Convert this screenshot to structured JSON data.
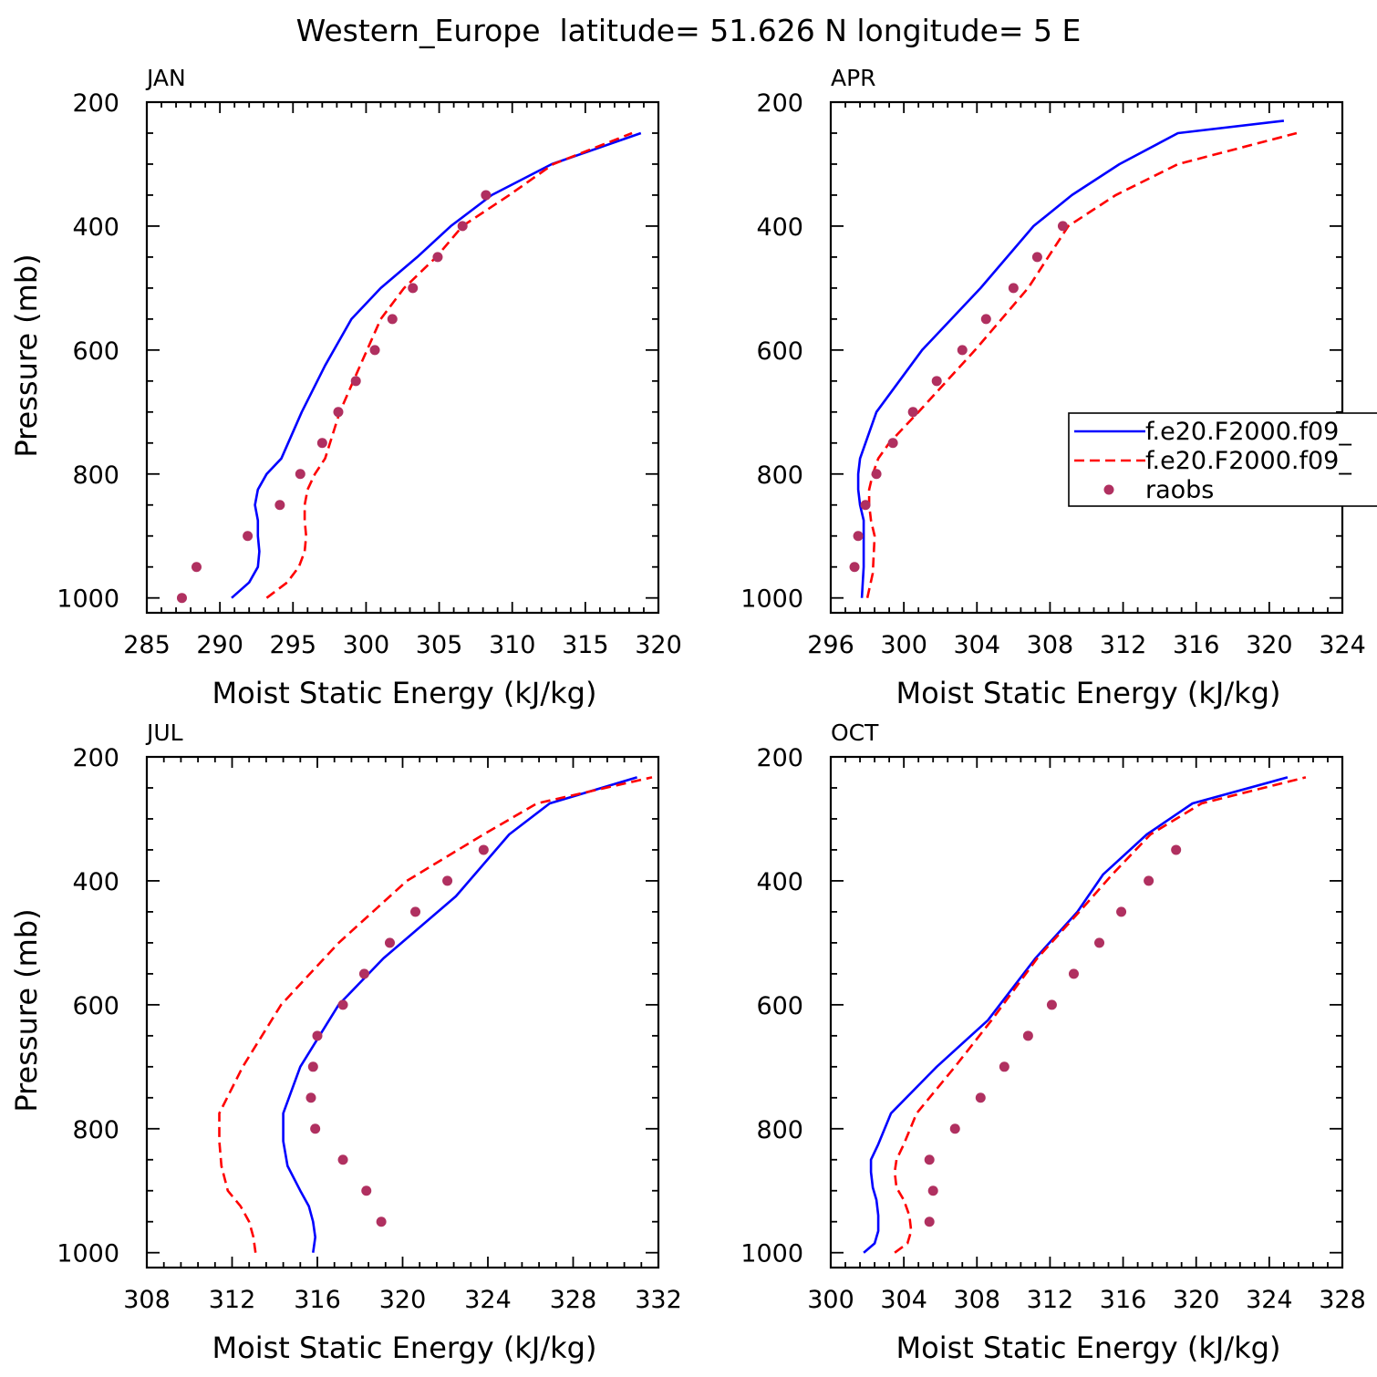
{
  "figure": {
    "title": "Western_Europe  latitude= 51.626 N longitude= 5 E"
  },
  "legend": {
    "placement": "right-middle of APR panel",
    "entries": [
      {
        "label": "f.e20.F2000.f09_",
        "color": "#0000ff",
        "style": "solid"
      },
      {
        "label": "f.e20.F2000.f09_",
        "color": "#ff0000",
        "style": "dashed"
      },
      {
        "label": "raobs",
        "color": "#b03060",
        "style": "dot"
      }
    ]
  },
  "chart_data": [
    {
      "type": "line",
      "panel_label": "JAN",
      "xlabel": "Moist Static Energy (kJ/kg)",
      "ylabel": "Pressure (mb)",
      "xlim": [
        285,
        320
      ],
      "ylim": [
        1000,
        200
      ],
      "xticks": [
        285,
        290,
        295,
        300,
        305,
        310,
        315,
        320
      ],
      "yticks": [
        200,
        400,
        600,
        800,
        1000
      ],
      "series": [
        {
          "name": "f.e20.F2000.f09_",
          "color": "#0000ff",
          "dash": false,
          "x": [
            290.8,
            292.0,
            292.6,
            292.7,
            292.6,
            292.6,
            292.4,
            292.6,
            293.2,
            294.2,
            295.6,
            297.2,
            299.0,
            301.0,
            303.5,
            305.8,
            308.6,
            312.7,
            318.8
          ],
          "y": [
            1000,
            975,
            950,
            925,
            900,
            875,
            850,
            825,
            800,
            775,
            700,
            625,
            550,
            500,
            450,
            400,
            350,
            300,
            250
          ]
        },
        {
          "name": "f.e20.F2000.f09_",
          "color": "#ff0000",
          "dash": true,
          "x": [
            293.2,
            294.6,
            295.4,
            295.8,
            295.9,
            295.8,
            295.8,
            296.0,
            296.5,
            297.2,
            298.2,
            299.6,
            301.0,
            302.6,
            304.8,
            306.6,
            309.8,
            312.8,
            318.2
          ],
          "y": [
            1000,
            975,
            950,
            925,
            900,
            875,
            850,
            825,
            800,
            775,
            700,
            625,
            550,
            500,
            450,
            400,
            350,
            300,
            250
          ]
        },
        {
          "name": "raobs",
          "color": "#b03060",
          "dots": true,
          "x": [
            287.4,
            288.4,
            291.9,
            294.1,
            295.5,
            297.0,
            298.1,
            299.3,
            300.6,
            301.8,
            303.2,
            304.9,
            306.6,
            308.2
          ],
          "y": [
            1000,
            950,
            900,
            850,
            800,
            750,
            700,
            650,
            600,
            550,
            500,
            450,
            400,
            350
          ]
        }
      ]
    },
    {
      "type": "line",
      "panel_label": "APR",
      "xlabel": "Moist Static Energy (kJ/kg)",
      "ylabel": "",
      "xlim": [
        296,
        324
      ],
      "ylim": [
        1000,
        200
      ],
      "xticks": [
        296,
        300,
        304,
        308,
        312,
        316,
        320,
        324
      ],
      "yticks": [
        200,
        400,
        600,
        800,
        1000
      ],
      "series": [
        {
          "name": "f.e20.F2000.f09_",
          "color": "#0000ff",
          "dash": false,
          "x": [
            297.7,
            297.8,
            297.8,
            297.8,
            297.6,
            297.5,
            297.5,
            297.6,
            297.9,
            298.5,
            301.0,
            304.2,
            307.1,
            309.2,
            311.8,
            315.0,
            320.8
          ],
          "y": [
            1000,
            950,
            900,
            875,
            850,
            825,
            800,
            775,
            750,
            700,
            600,
            500,
            400,
            350,
            300,
            250,
            230
          ]
        },
        {
          "name": "f.e20.F2000.f09_",
          "color": "#ff0000",
          "dash": true,
          "x": [
            298.0,
            298.3,
            298.4,
            298.2,
            298.1,
            298.1,
            298.3,
            298.6,
            299.2,
            300.8,
            303.9,
            306.8,
            309.0,
            311.6,
            315.0,
            321.5
          ],
          "y": [
            1000,
            960,
            900,
            875,
            850,
            825,
            800,
            775,
            750,
            700,
            600,
            500,
            400,
            350,
            300,
            250
          ]
        },
        {
          "name": "raobs",
          "color": "#b03060",
          "dots": true,
          "x": [
            297.3,
            297.5,
            297.9,
            298.5,
            299.4,
            300.5,
            301.8,
            303.2,
            304.5,
            306.0,
            307.3,
            308.7
          ],
          "y": [
            950,
            900,
            850,
            800,
            750,
            700,
            650,
            600,
            550,
            500,
            450,
            400
          ]
        }
      ]
    },
    {
      "type": "line",
      "panel_label": "JUL",
      "xlabel": "Moist Static Energy (kJ/kg)",
      "ylabel": "Pressure (mb)",
      "xlim": [
        308,
        332
      ],
      "ylim": [
        1000,
        200
      ],
      "xticks": [
        308,
        312,
        316,
        320,
        324,
        328,
        332
      ],
      "yticks": [
        200,
        400,
        600,
        800,
        1000
      ],
      "series": [
        {
          "name": "f.e20.F2000.f09_",
          "color": "#0000ff",
          "dash": false,
          "x": [
            315.8,
            315.9,
            315.8,
            315.6,
            315.2,
            314.6,
            314.4,
            314.4,
            315.2,
            317.0,
            319.1,
            322.5,
            325.0,
            326.9,
            331.0
          ],
          "y": [
            1000,
            975,
            950,
            925,
            900,
            860,
            820,
            775,
            700,
            600,
            525,
            425,
            325,
            275,
            233
          ]
        },
        {
          "name": "f.e20.F2000.f09_",
          "color": "#ff0000",
          "dash": true,
          "x": [
            313.1,
            313.0,
            312.8,
            312.4,
            311.8,
            311.5,
            311.4,
            311.4,
            312.5,
            314.3,
            317.0,
            320.2,
            323.8,
            326.3,
            331.7
          ],
          "y": [
            1000,
            975,
            950,
            925,
            900,
            860,
            820,
            775,
            700,
            600,
            500,
            400,
            325,
            275,
            233
          ]
        },
        {
          "name": "raobs",
          "color": "#b03060",
          "dots": true,
          "x": [
            319.0,
            318.3,
            317.2,
            315.9,
            315.7,
            315.8,
            316.0,
            317.2,
            318.2,
            319.4,
            320.6,
            322.1,
            323.8
          ],
          "y": [
            950,
            900,
            850,
            800,
            750,
            700,
            650,
            600,
            550,
            500,
            450,
            400,
            350
          ]
        }
      ]
    },
    {
      "type": "line",
      "panel_label": "OCT",
      "xlabel": "Moist Static Energy (kJ/kg)",
      "ylabel": "",
      "xlim": [
        300,
        328
      ],
      "ylim": [
        1000,
        200
      ],
      "xticks": [
        300,
        304,
        308,
        312,
        316,
        320,
        324,
        328
      ],
      "yticks": [
        200,
        400,
        600,
        800,
        1000
      ],
      "series": [
        {
          "name": "f.e20.F2000.f09_",
          "color": "#0000ff",
          "dash": false,
          "x": [
            301.8,
            302.4,
            302.6,
            302.6,
            302.5,
            302.3,
            302.2,
            302.2,
            302.6,
            303.3,
            305.8,
            308.6,
            311.2,
            313.5,
            314.9,
            317.3,
            319.8,
            325.0
          ],
          "y": [
            1000,
            985,
            965,
            940,
            915,
            895,
            870,
            850,
            825,
            775,
            700,
            625,
            525,
            450,
            390,
            325,
            275,
            233
          ]
        },
        {
          "name": "f.e20.F2000.f09_",
          "color": "#ff0000",
          "dash": true,
          "x": [
            303.5,
            304.2,
            304.4,
            304.3,
            304.0,
            303.6,
            303.5,
            303.6,
            304.0,
            304.7,
            306.8,
            308.8,
            311.3,
            313.6,
            315.4,
            317.5,
            320.3,
            326.0
          ],
          "y": [
            1000,
            985,
            965,
            940,
            915,
            895,
            870,
            850,
            825,
            775,
            700,
            625,
            525,
            450,
            390,
            325,
            275,
            233
          ]
        },
        {
          "name": "raobs",
          "color": "#b03060",
          "dots": true,
          "x": [
            305.4,
            305.6,
            305.4,
            306.8,
            308.2,
            309.5,
            310.8,
            312.1,
            313.3,
            314.7,
            315.9,
            317.4,
            318.9
          ],
          "y": [
            950,
            900,
            850,
            800,
            750,
            700,
            650,
            600,
            550,
            500,
            450,
            400,
            350
          ]
        }
      ]
    }
  ]
}
